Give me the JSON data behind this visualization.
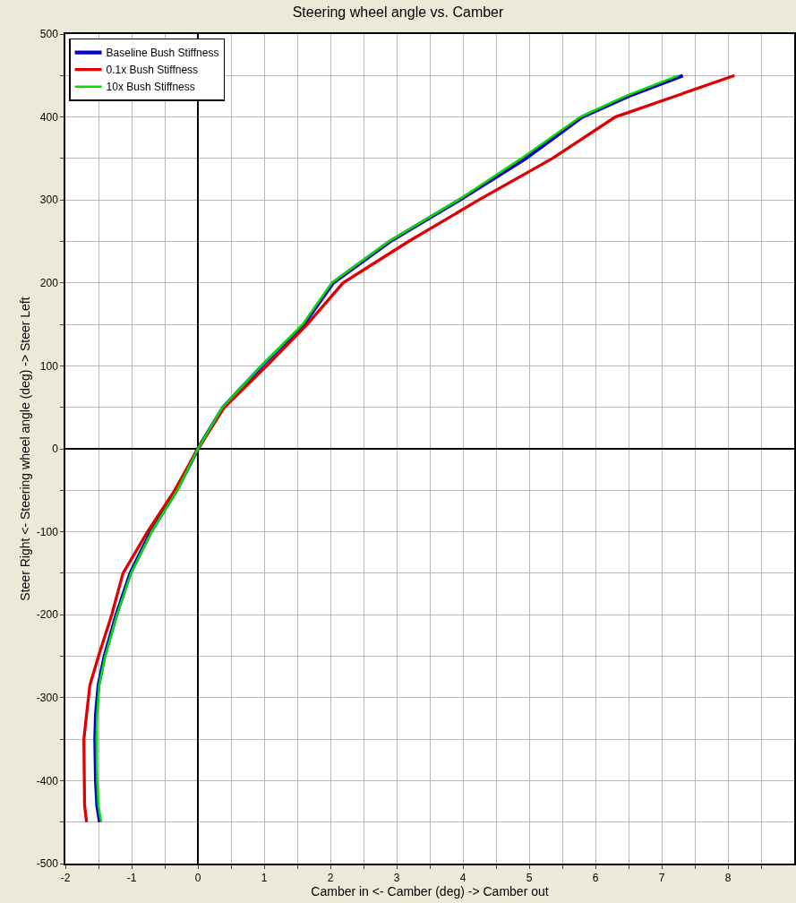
{
  "chart_data": {
    "type": "line",
    "title": "Steering wheel angle vs. Camber",
    "xlabel": "Camber in <- Camber (deg) -> Camber out",
    "ylabel": "Steer Right <- Steering wheel angle (deg) -> Steer Left",
    "xlim": [
      -2,
      9
    ],
    "ylim": [
      -500,
      500
    ],
    "xticks": [
      -2,
      {
        "value": -1.5,
        "label": null
      },
      -1,
      {
        "value": -0.5,
        "label": null
      },
      0,
      {
        "value": 0.5,
        "label": null
      },
      1,
      {
        "value": 1.5,
        "label": null
      },
      2,
      {
        "value": 2.5,
        "label": null
      },
      3,
      {
        "value": 3.5,
        "label": null
      },
      4,
      {
        "value": 4.5,
        "label": null
      },
      5,
      {
        "value": 5.5,
        "label": null
      },
      6,
      {
        "value": 6.5,
        "label": null
      },
      7,
      {
        "value": 7.5,
        "label": null
      },
      8,
      {
        "value": 8.5,
        "label": null
      }
    ],
    "yticks": [
      -500,
      {
        "value": -450,
        "label": null
      },
      -400,
      {
        "value": -350,
        "label": null
      },
      -300,
      {
        "value": -250,
        "label": null
      },
      -200,
      {
        "value": -150,
        "label": null
      },
      -100,
      {
        "value": -50,
        "label": null
      },
      0,
      {
        "value": 50,
        "label": null
      },
      100,
      {
        "value": 150,
        "label": null
      },
      200,
      {
        "value": 250,
        "label": null
      },
      300,
      {
        "value": 350,
        "label": null
      },
      400,
      {
        "value": 450,
        "label": null
      },
      500
    ],
    "grid": true,
    "legend": "top left",
    "marker": "none",
    "line_style": "solid",
    "series": [
      {
        "name": "Baseline Bush Stiffness",
        "color": "#0000c8",
        "x": [
          -1.48,
          -1.52,
          -1.54,
          -1.55,
          -1.54,
          -1.5,
          -1.41,
          -1.23,
          -1.02,
          -0.71,
          -0.32,
          0,
          0.38,
          0.97,
          1.6,
          2.04,
          2.9,
          3.95,
          4.95,
          5.8,
          6.5,
          7.32
        ],
        "values": [
          -450,
          -430,
          -400,
          -350,
          -320,
          -285,
          -250,
          -200,
          -150,
          -100,
          -50,
          0,
          50,
          100,
          150,
          200,
          250,
          300,
          350,
          400,
          425,
          450
        ]
      },
      {
        "name": "0.1x Bush Stiffness",
        "color": "#e00000",
        "x": [
          -1.68,
          -1.71,
          -1.72,
          -1.68,
          -1.63,
          -1.5,
          -1.3,
          -1.13,
          -0.76,
          -0.35,
          0,
          0.4,
          1.04,
          1.65,
          2.19,
          3.18,
          4.24,
          5.35,
          6.3,
          7.2,
          8.1
        ],
        "values": [
          -450,
          -430,
          -350,
          -320,
          -285,
          -250,
          -200,
          -150,
          -100,
          -50,
          0,
          50,
          100,
          150,
          200,
          250,
          300,
          350,
          400,
          425,
          450
        ]
      },
      {
        "name": "10x Bush Stiffness",
        "color": "#00e000",
        "x": [
          -1.46,
          -1.5,
          -1.52,
          -1.53,
          -1.52,
          -1.49,
          -1.4,
          -1.22,
          -1.01,
          -0.7,
          -0.31,
          0,
          0.37,
          0.96,
          1.58,
          2.02,
          2.88,
          3.93,
          4.88,
          5.77,
          6.45,
          7.25
        ],
        "values": [
          -450,
          -430,
          -400,
          -350,
          -320,
          -285,
          -250,
          -200,
          -150,
          -100,
          -50,
          0,
          50,
          100,
          150,
          200,
          250,
          300,
          350,
          400,
          425,
          450
        ]
      }
    ]
  }
}
